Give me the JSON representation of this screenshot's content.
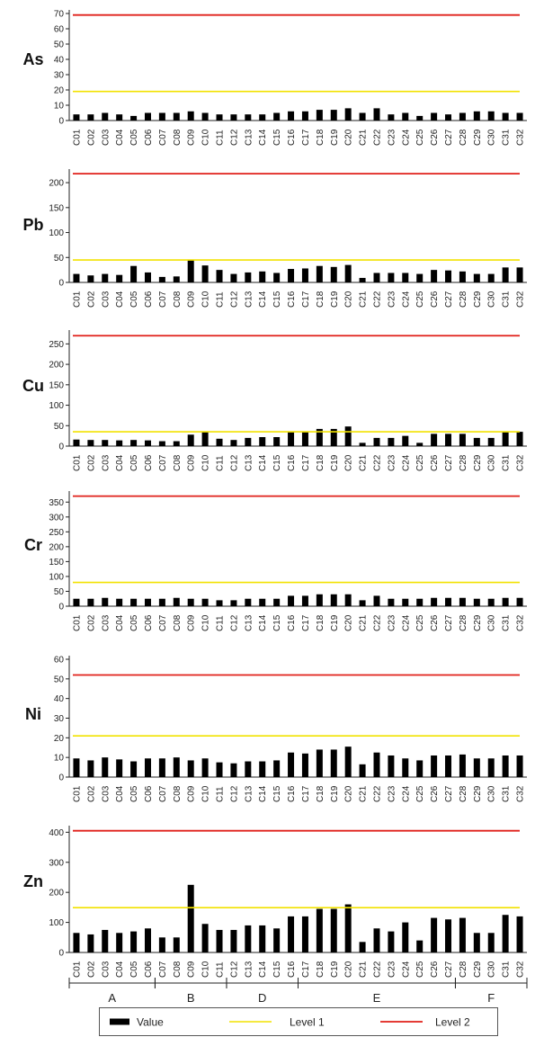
{
  "chart_data": {
    "type": "bar",
    "categories": [
      "C01",
      "C02",
      "C03",
      "C04",
      "C05",
      "C06",
      "C07",
      "C08",
      "C09",
      "C10",
      "C11",
      "C12",
      "C13",
      "C14",
      "C15",
      "C16",
      "C17",
      "C18",
      "C19",
      "C20",
      "C21",
      "C22",
      "C23",
      "C24",
      "C25",
      "C26",
      "C27",
      "C28",
      "C29",
      "C30",
      "C31",
      "C32"
    ],
    "panels": [
      {
        "name": "As",
        "ylim": [
          0,
          70
        ],
        "yticks": [
          0,
          10,
          20,
          30,
          40,
          50,
          60,
          70
        ],
        "level1": 19,
        "level2": 69,
        "values": [
          4,
          4,
          5,
          4,
          3,
          5,
          5,
          5,
          6,
          5,
          4,
          4,
          4,
          4,
          5,
          6,
          6,
          7,
          7,
          8,
          5,
          8,
          4,
          5,
          3,
          5,
          4,
          5,
          6,
          6,
          5,
          5
        ]
      },
      {
        "name": "Pb",
        "ylim": [
          0,
          220
        ],
        "yticks": [
          0,
          50,
          100,
          150,
          200
        ],
        "level1": 45,
        "level2": 218,
        "values": [
          17,
          14,
          17,
          15,
          33,
          20,
          11,
          12,
          45,
          34,
          25,
          17,
          20,
          22,
          19,
          27,
          28,
          33,
          31,
          35,
          9,
          19,
          19,
          19,
          17,
          25,
          24,
          22,
          17,
          17,
          30,
          30
        ]
      },
      {
        "name": "Cu",
        "ylim": [
          0,
          275
        ],
        "yticks": [
          0,
          50,
          100,
          150,
          200,
          250
        ],
        "level1": 35,
        "level2": 270,
        "values": [
          16,
          15,
          15,
          14,
          15,
          14,
          12,
          12,
          28,
          35,
          18,
          15,
          20,
          22,
          22,
          35,
          35,
          42,
          42,
          48,
          8,
          20,
          20,
          25,
          8,
          30,
          30,
          30,
          20,
          20,
          35,
          35
        ]
      },
      {
        "name": "Cr",
        "ylim": [
          0,
          375
        ],
        "yticks": [
          0,
          50,
          100,
          150,
          200,
          250,
          300,
          350
        ],
        "level1": 80,
        "level2": 370,
        "values": [
          25,
          25,
          28,
          25,
          25,
          25,
          25,
          28,
          25,
          25,
          20,
          20,
          25,
          25,
          25,
          35,
          35,
          40,
          40,
          40,
          20,
          35,
          25,
          25,
          25,
          28,
          28,
          28,
          25,
          25,
          28,
          28
        ]
      },
      {
        "name": "Ni",
        "ylim": [
          0,
          60
        ],
        "yticks": [
          0,
          10,
          20,
          30,
          40,
          50,
          60
        ],
        "level1": 21,
        "level2": 52,
        "values": [
          9.5,
          8.5,
          10,
          9,
          8,
          9.5,
          9.5,
          10,
          8.5,
          9.5,
          7.5,
          7,
          8,
          8,
          8.5,
          12.5,
          12,
          14,
          14,
          15.5,
          6.5,
          12.5,
          11,
          9.5,
          8.5,
          11,
          11,
          11.5,
          9.5,
          9.5,
          11,
          11
        ]
      },
      {
        "name": "Zn",
        "ylim": [
          0,
          410
        ],
        "yticks": [
          0,
          100,
          200,
          300,
          400
        ],
        "level1": 149,
        "level2": 405,
        "values": [
          65,
          60,
          75,
          65,
          70,
          80,
          50,
          50,
          225,
          95,
          75,
          75,
          90,
          90,
          80,
          120,
          120,
          145,
          145,
          160,
          35,
          80,
          70,
          100,
          40,
          115,
          110,
          115,
          65,
          65,
          125,
          120
        ]
      }
    ],
    "groups": [
      {
        "label": "A",
        "from": "C01",
        "to": "C06"
      },
      {
        "label": "B",
        "from": "C07",
        "to": "C11"
      },
      {
        "label": "D",
        "from": "C12",
        "to": "C16"
      },
      {
        "label": "E",
        "from": "C17",
        "to": "C27"
      },
      {
        "label": "F",
        "from": "C28",
        "to": "C32"
      }
    ],
    "legend": [
      {
        "label": "Value"
      },
      {
        "label": "Level 1"
      },
      {
        "label": "Level 2"
      }
    ],
    "colors": {
      "bar": "#000000",
      "level1": "#f2e200",
      "level2": "#e0201a",
      "axis": "#222222"
    }
  }
}
